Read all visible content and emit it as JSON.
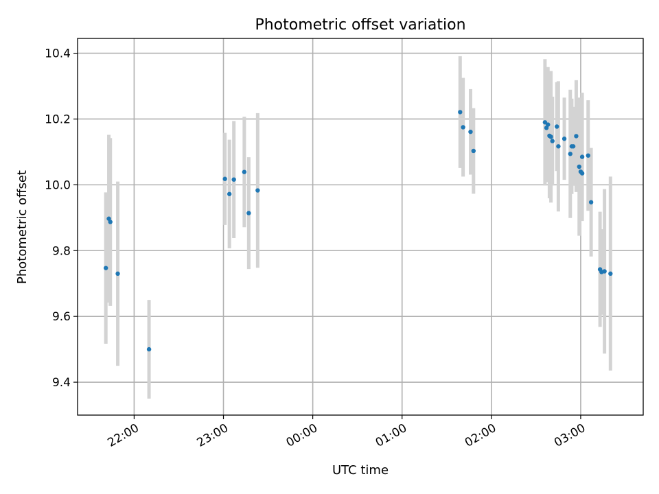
{
  "chart_data": {
    "type": "scatter",
    "title": "Photometric offset variation",
    "xlabel": "UTC time",
    "ylabel": "Photometric offset",
    "x_ticks": [
      "22:00",
      "23:00",
      "00:00",
      "01:00",
      "02:00",
      "03:00"
    ],
    "y_ticks": [
      "9.4",
      "9.6",
      "9.8",
      "10.0",
      "10.2",
      "10.4"
    ],
    "xlim": [
      "21:22",
      "03:42"
    ],
    "ylim": [
      9.3,
      10.445
    ],
    "grid": true,
    "colors": {
      "point": "#1f77b4",
      "errorbar": "#d3d3d3"
    },
    "points": [
      {
        "x": "21:41",
        "y": 9.747,
        "err": 0.23
      },
      {
        "x": "21:43",
        "y": 9.897,
        "err": 0.255
      },
      {
        "x": "21:44",
        "y": 9.887,
        "err": 0.255
      },
      {
        "x": "21:49",
        "y": 9.73,
        "err": 0.28
      },
      {
        "x": "22:10",
        "y": 9.5,
        "err": 0.15
      },
      {
        "x": "23:01",
        "y": 10.018,
        "err": 0.14
      },
      {
        "x": "23:04",
        "y": 9.972,
        "err": 0.165
      },
      {
        "x": "23:07",
        "y": 10.016,
        "err": 0.178
      },
      {
        "x": "23:14",
        "y": 10.039,
        "err": 0.168
      },
      {
        "x": "23:17",
        "y": 9.914,
        "err": 0.17
      },
      {
        "x": "23:23",
        "y": 9.983,
        "err": 0.235
      },
      {
        "x": "01:39",
        "y": 10.221,
        "err": 0.17
      },
      {
        "x": "01:41",
        "y": 10.175,
        "err": 0.15
      },
      {
        "x": "01:46",
        "y": 10.161,
        "err": 0.13
      },
      {
        "x": "01:48",
        "y": 10.103,
        "err": 0.13
      },
      {
        "x": "02:36",
        "y": 10.19,
        "err": 0.192
      },
      {
        "x": "02:37",
        "y": 10.173,
        "err": 0.13
      },
      {
        "x": "02:38",
        "y": 10.183,
        "err": 0.175
      },
      {
        "x": "02:39",
        "y": 10.149,
        "err": 0.19
      },
      {
        "x": "02:40",
        "y": 10.146,
        "err": 0.2
      },
      {
        "x": "02:41",
        "y": 10.133,
        "err": 0.135
      },
      {
        "x": "02:44",
        "y": 10.177,
        "err": 0.135
      },
      {
        "x": "02:45",
        "y": 10.117,
        "err": 0.198
      },
      {
        "x": "02:49",
        "y": 10.14,
        "err": 0.125
      },
      {
        "x": "02:53",
        "y": 10.094,
        "err": 0.195
      },
      {
        "x": "02:54",
        "y": 10.117,
        "err": 0.145
      },
      {
        "x": "02:55",
        "y": 10.117,
        "err": 0.12
      },
      {
        "x": "02:57",
        "y": 10.148,
        "err": 0.17
      },
      {
        "x": "02:59",
        "y": 10.055,
        "err": 0.21
      },
      {
        "x": "03:00",
        "y": 10.04,
        "err": 0.13
      },
      {
        "x": "03:01",
        "y": 10.085,
        "err": 0.195
      },
      {
        "x": "03:01",
        "y": 10.035,
        "err": 0.085
      },
      {
        "x": "03:05",
        "y": 10.089,
        "err": 0.168
      },
      {
        "x": "03:07",
        "y": 9.947,
        "err": 0.165
      },
      {
        "x": "03:13",
        "y": 9.743,
        "err": 0.175
      },
      {
        "x": "03:14",
        "y": 9.735,
        "err": 0.13
      },
      {
        "x": "03:16",
        "y": 9.737,
        "err": 0.25
      },
      {
        "x": "03:20",
        "y": 9.73,
        "err": 0.295
      }
    ]
  }
}
